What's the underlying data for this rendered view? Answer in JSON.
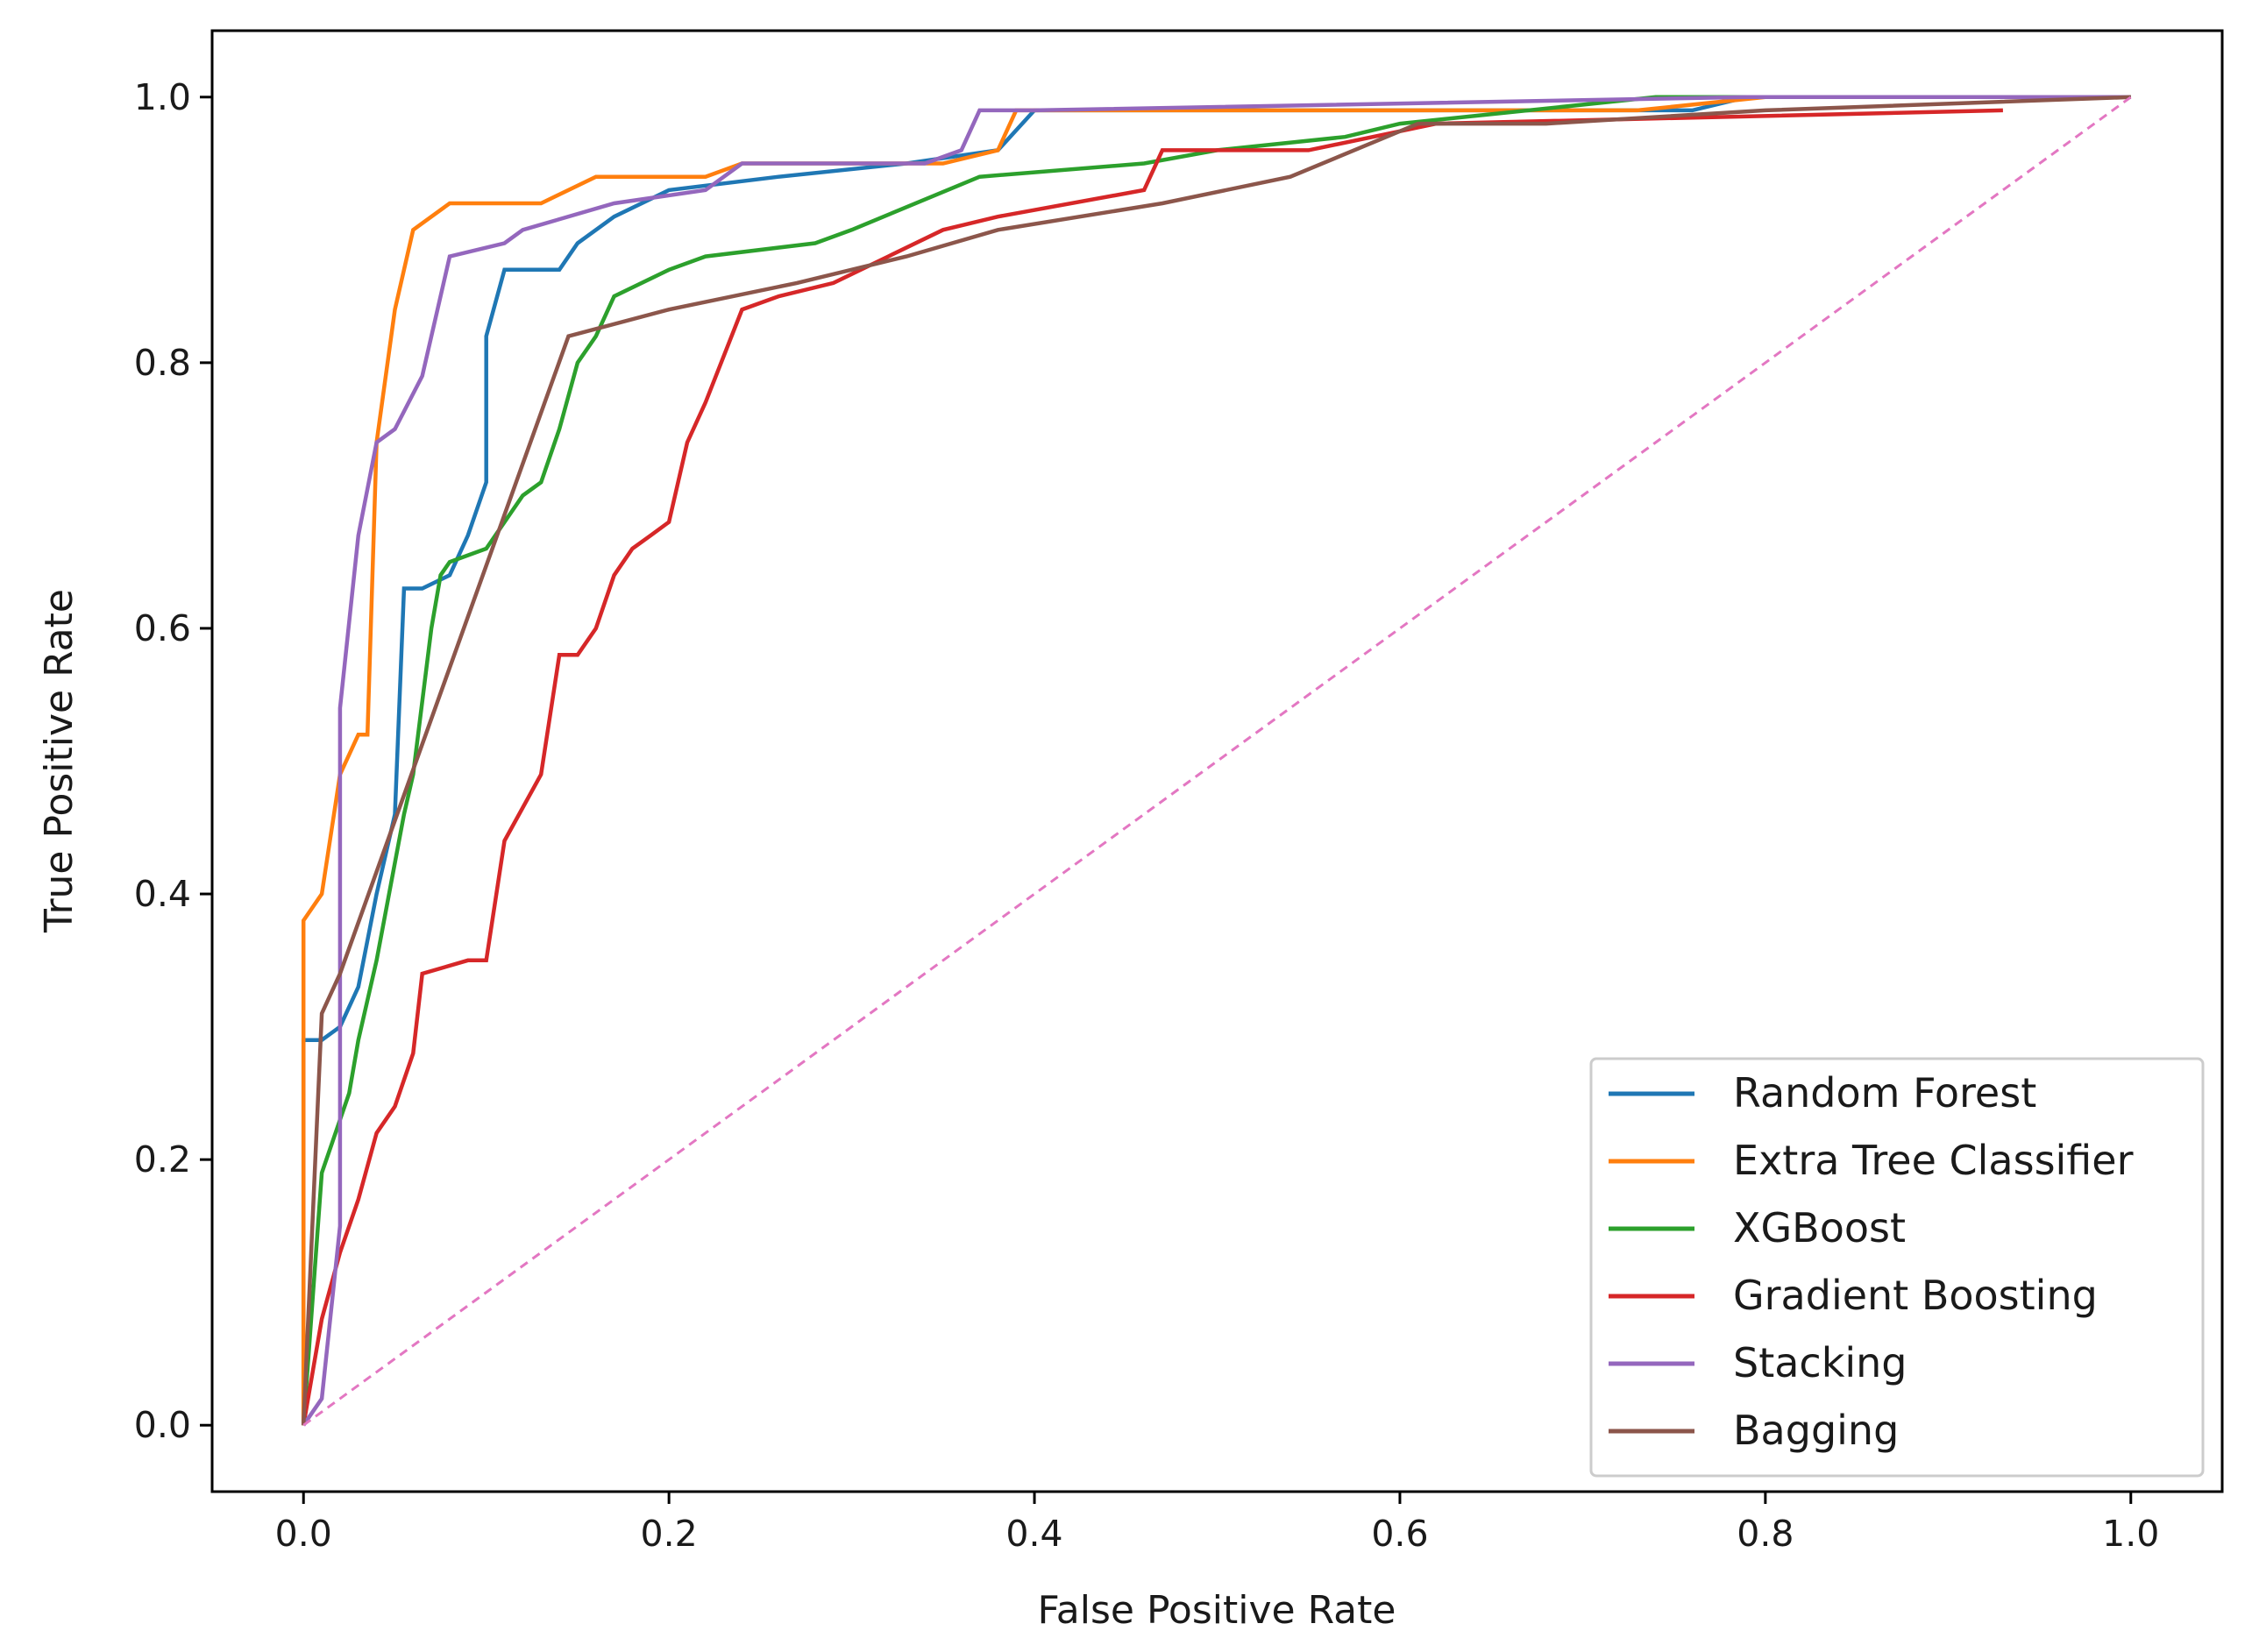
{
  "chart_data": {
    "type": "line",
    "title": "",
    "xlabel": "False Positive Rate",
    "ylabel": "True Positive Rate",
    "xlim": [
      -0.05,
      1.05
    ],
    "ylim": [
      -0.05,
      1.05
    ],
    "xticks": [
      0.0,
      0.2,
      0.4,
      0.6,
      0.8,
      1.0
    ],
    "xtick_labels": [
      "0.0",
      "0.2",
      "0.4",
      "0.6",
      "0.8",
      "1.0"
    ],
    "yticks": [
      0.0,
      0.2,
      0.4,
      0.6,
      0.8,
      1.0
    ],
    "ytick_labels": [
      "0.0",
      "0.2",
      "0.4",
      "0.6",
      "0.8",
      "1.0"
    ],
    "grid": false,
    "legend_position": "lower-right",
    "series": [
      {
        "name": "Random Forest",
        "color": "#1f77b4",
        "x": [
          0.0,
          0.0,
          0.01,
          0.02,
          0.03,
          0.04,
          0.05,
          0.055,
          0.065,
          0.08,
          0.09,
          0.1,
          0.1,
          0.11,
          0.14,
          0.15,
          0.17,
          0.2,
          0.26,
          0.33,
          0.38,
          0.4,
          0.42,
          0.62,
          0.76,
          0.79,
          1.0
        ],
        "y": [
          0.0,
          0.29,
          0.29,
          0.3,
          0.33,
          0.4,
          0.46,
          0.63,
          0.63,
          0.64,
          0.67,
          0.71,
          0.82,
          0.87,
          0.87,
          0.89,
          0.91,
          0.93,
          0.94,
          0.95,
          0.96,
          0.99,
          0.99,
          0.99,
          0.99,
          1.0,
          1.0
        ]
      },
      {
        "name": "Extra Tree Classifier",
        "color": "#ff7f0e",
        "x": [
          0.0,
          0.0,
          0.01,
          0.02,
          0.03,
          0.035,
          0.04,
          0.05,
          0.055,
          0.06,
          0.08,
          0.13,
          0.16,
          0.22,
          0.24,
          0.35,
          0.38,
          0.39,
          0.73,
          0.8,
          1.0
        ],
        "y": [
          0.0,
          0.38,
          0.4,
          0.49,
          0.52,
          0.52,
          0.74,
          0.84,
          0.87,
          0.9,
          0.92,
          0.92,
          0.94,
          0.94,
          0.95,
          0.95,
          0.96,
          0.99,
          0.99,
          1.0,
          1.0
        ]
      },
      {
        "name": "XGBoost",
        "color": "#2ca02c",
        "x": [
          0.0,
          0.01,
          0.02,
          0.025,
          0.03,
          0.04,
          0.055,
          0.06,
          0.07,
          0.075,
          0.08,
          0.1,
          0.12,
          0.13,
          0.14,
          0.15,
          0.16,
          0.17,
          0.2,
          0.22,
          0.28,
          0.3,
          0.37,
          0.46,
          0.5,
          0.57,
          0.6,
          0.74,
          0.8,
          1.0
        ],
        "y": [
          0.0,
          0.19,
          0.23,
          0.25,
          0.29,
          0.35,
          0.46,
          0.49,
          0.6,
          0.64,
          0.65,
          0.66,
          0.7,
          0.71,
          0.75,
          0.8,
          0.82,
          0.85,
          0.87,
          0.88,
          0.89,
          0.9,
          0.94,
          0.95,
          0.96,
          0.97,
          0.98,
          1.0,
          1.0,
          1.0
        ]
      },
      {
        "name": "Gradient Boosting",
        "color": "#d62728",
        "x": [
          0.0,
          0.01,
          0.02,
          0.03,
          0.04,
          0.05,
          0.06,
          0.065,
          0.09,
          0.1,
          0.11,
          0.13,
          0.14,
          0.15,
          0.16,
          0.17,
          0.18,
          0.19,
          0.2,
          0.21,
          0.22,
          0.24,
          0.26,
          0.29,
          0.32,
          0.35,
          0.38,
          0.46,
          0.47,
          0.5,
          0.55,
          0.62,
          0.93
        ],
        "y": [
          0.0,
          0.08,
          0.13,
          0.17,
          0.22,
          0.24,
          0.28,
          0.34,
          0.35,
          0.35,
          0.44,
          0.49,
          0.58,
          0.58,
          0.6,
          0.64,
          0.66,
          0.67,
          0.68,
          0.74,
          0.77,
          0.84,
          0.85,
          0.86,
          0.88,
          0.9,
          0.91,
          0.93,
          0.96,
          0.96,
          0.96,
          0.98,
          0.99
        ]
      },
      {
        "name": "Stacking",
        "color": "#9467bd",
        "x": [
          0.0,
          0.01,
          0.02,
          0.02,
          0.03,
          0.04,
          0.05,
          0.065,
          0.08,
          0.11,
          0.12,
          0.17,
          0.22,
          0.24,
          0.34,
          0.36,
          0.37,
          0.4,
          0.79,
          1.0
        ],
        "y": [
          0.0,
          0.02,
          0.15,
          0.54,
          0.67,
          0.74,
          0.75,
          0.79,
          0.88,
          0.89,
          0.9,
          0.92,
          0.93,
          0.95,
          0.95,
          0.96,
          0.99,
          0.99,
          1.0,
          1.0
        ]
      },
      {
        "name": "Bagging",
        "color": "#8c564b",
        "x": [
          0.0,
          0.01,
          0.02,
          0.145,
          0.2,
          0.27,
          0.33,
          0.38,
          0.47,
          0.54,
          0.61,
          0.68,
          0.8,
          1.0
        ],
        "y": [
          0.0,
          0.31,
          0.34,
          0.82,
          0.84,
          0.86,
          0.88,
          0.9,
          0.92,
          0.94,
          0.98,
          0.98,
          0.99,
          1.0
        ]
      },
      {
        "name": "",
        "color": "#e377c2",
        "dashed": true,
        "x": [
          0.0,
          1.0
        ],
        "y": [
          0.0,
          1.0
        ]
      }
    ]
  }
}
